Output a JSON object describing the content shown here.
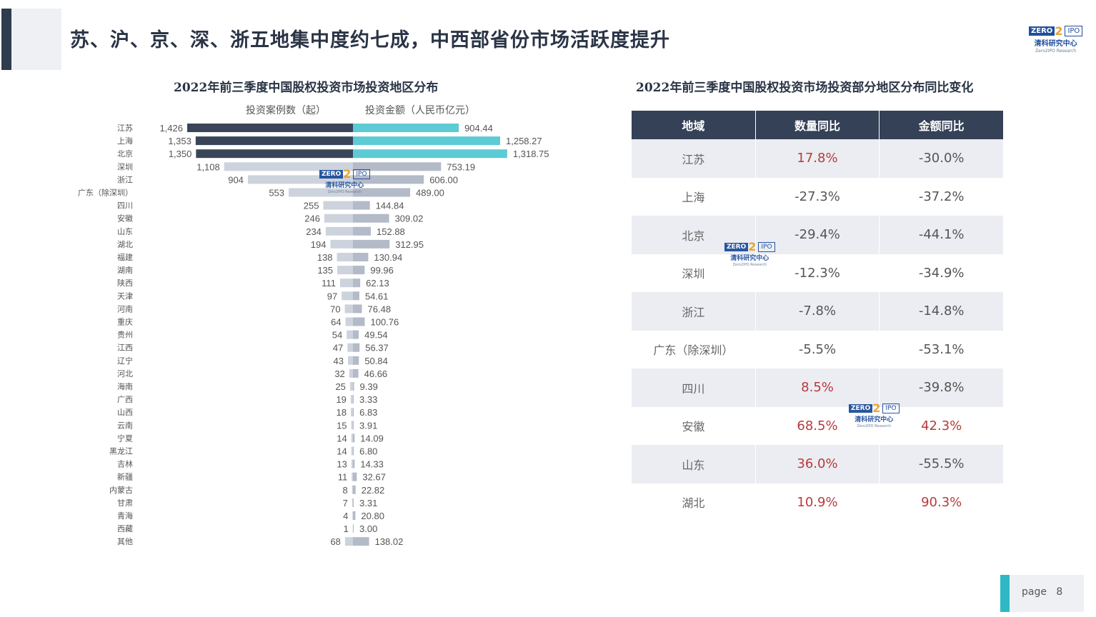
{
  "page": {
    "title": "苏、沪、京、深、浙五地集中度约七成，中西部省份市场活跃度提升",
    "page_label": "page",
    "page_number": "8"
  },
  "logo": {
    "zero": "ZERO",
    "ipo": "IPO",
    "cn": "清科研究中心",
    "en": "Zero2IPO Research"
  },
  "colors": {
    "dark_bar": "#3a4559",
    "teal_bar": "#5ccbd4",
    "light_count_bar": "#cdd3dd",
    "light_amount_bar": "#b3bac8",
    "header_bg": "#354157",
    "positive_red": "#b83a3a"
  },
  "left_chart": {
    "title": "2022年前三季度中国股权投资市场投资地区分布",
    "legend_count": "投资案例数（起）",
    "legend_amount": "投资金额（人民币亿元）"
  },
  "chart_data": [
    {
      "type": "bar",
      "title": "2022年前三季度中国股权投资市场投资地区分布",
      "orientation": "horizontal-back-to-back",
      "categories": [
        "江苏",
        "上海",
        "北京",
        "深圳",
        "浙江",
        "广东（除深圳）",
        "四川",
        "安徽",
        "山东",
        "湖北",
        "福建",
        "湖南",
        "陕西",
        "天津",
        "河南",
        "重庆",
        "贵州",
        "江西",
        "辽宁",
        "河北",
        "海南",
        "广西",
        "山西",
        "云南",
        "宁夏",
        "黑龙江",
        "吉林",
        "新疆",
        "内蒙古",
        "甘肃",
        "青海",
        "西藏",
        "其他"
      ],
      "series": [
        {
          "name": "投资案例数（起）",
          "values": [
            1426,
            1353,
            1350,
            1108,
            904,
            553,
            255,
            246,
            234,
            194,
            138,
            135,
            111,
            97,
            70,
            64,
            54,
            47,
            43,
            32,
            25,
            19,
            18,
            15,
            14,
            14,
            13,
            11,
            8,
            7,
            4,
            1,
            68
          ],
          "labels": [
            "1,426",
            "1,353",
            "1,350",
            "1,108",
            "904",
            "553",
            "255",
            "246",
            "234",
            "194",
            "138",
            "135",
            "111",
            "97",
            "70",
            "64",
            "54",
            "47",
            "43",
            "32",
            "25",
            "19",
            "18",
            "15",
            "14",
            "14",
            "13",
            "11",
            "8",
            "7",
            "4",
            "1",
            "68"
          ]
        },
        {
          "name": "投资金额（人民币亿元）",
          "values": [
            904.44,
            1258.27,
            1318.75,
            753.19,
            606.0,
            489.0,
            144.84,
            309.02,
            152.88,
            312.95,
            130.94,
            99.96,
            62.13,
            54.61,
            76.48,
            100.76,
            49.54,
            56.37,
            50.84,
            46.66,
            9.39,
            3.33,
            6.83,
            3.91,
            14.09,
            6.8,
            14.33,
            32.67,
            22.82,
            3.31,
            20.8,
            3.0,
            138.02
          ],
          "labels": [
            "904.44",
            "1,258.27",
            "1,318.75",
            "753.19",
            "606.00",
            "489.00",
            "144.84",
            "309.02",
            "152.88",
            "312.95",
            "130.94",
            "99.96",
            "62.13",
            "54.61",
            "76.48",
            "100.76",
            "49.54",
            "56.37",
            "50.84",
            "46.66",
            "9.39",
            "3.33",
            "6.83",
            "3.91",
            "14.09",
            "6.80",
            "14.33",
            "32.67",
            "22.82",
            "3.31",
            "20.80",
            "3.00",
            "138.02"
          ]
        }
      ],
      "highlighted_top": 3
    },
    {
      "type": "table",
      "title": "2022年前三季度中国股权投资市场投资部分地区分布同比变化",
      "columns": [
        "地域",
        "数量同比",
        "金额同比"
      ],
      "rows": [
        {
          "region": "江苏",
          "count_yoy": "17.8%",
          "amount_yoy": "-30.0%"
        },
        {
          "region": "上海",
          "count_yoy": "-27.3%",
          "amount_yoy": "-37.2%"
        },
        {
          "region": "北京",
          "count_yoy": "-29.4%",
          "amount_yoy": "-44.1%"
        },
        {
          "region": "深圳",
          "count_yoy": "-12.3%",
          "amount_yoy": "-34.9%"
        },
        {
          "region": "浙江",
          "count_yoy": "-7.8%",
          "amount_yoy": "-14.8%"
        },
        {
          "region": "广东（除深圳）",
          "count_yoy": "-5.5%",
          "amount_yoy": "-53.1%"
        },
        {
          "region": "四川",
          "count_yoy": "8.5%",
          "amount_yoy": "-39.8%"
        },
        {
          "region": "安徽",
          "count_yoy": "68.5%",
          "amount_yoy": "42.3%"
        },
        {
          "region": "山东",
          "count_yoy": "36.0%",
          "amount_yoy": "-55.5%"
        },
        {
          "region": "湖北",
          "count_yoy": "10.9%",
          "amount_yoy": "90.3%"
        }
      ]
    }
  ]
}
